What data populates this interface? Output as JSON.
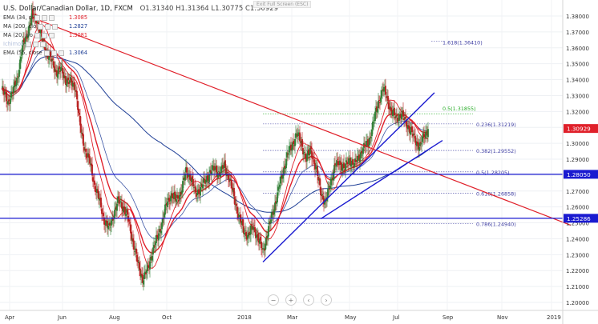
{
  "header": {
    "title": "U.S. Dollar/Canadian Dollar, 1D, FXCM",
    "open": "O1.31340",
    "high": "H1.31364",
    "low": "L1.30775",
    "close": "C1.30929",
    "exit_fullscreen": "Exit Full Screen (ESC)"
  },
  "legend": [
    {
      "label": "EMA (34, cl",
      "value": "1.3085",
      "color": "#e0202a",
      "icon": "eye-icon"
    },
    {
      "label": "MA (200, clo",
      "value": "1.2827",
      "color": "#1f3f96",
      "icon": "eye-icon"
    },
    {
      "label": "MA (20, clo",
      "value": "1.3081",
      "color": "#e0202a",
      "icon": "eye-icon"
    },
    {
      "label": "Ichimok",
      "value": "",
      "color": "#9bb0d8",
      "icon": "eye-icon"
    },
    {
      "label": "EMA (55, close",
      "value": "1.3064",
      "color": "#1f3f96",
      "icon": "eye-icon"
    }
  ],
  "nav_buttons": [
    {
      "label": "−",
      "icon": "zoom-out-icon"
    },
    {
      "label": "+",
      "icon": "zoom-in-icon"
    },
    {
      "label": "‹",
      "icon": "scroll-left-icon"
    },
    {
      "label": "›",
      "icon": "scroll-right-icon"
    }
  ],
  "price_labels": [
    {
      "text": "1.30929",
      "price": 1.30929,
      "bg": "#e0202a"
    },
    {
      "text": "1.28050",
      "price": 1.2805,
      "bg": "#1a1ad0"
    },
    {
      "text": "1.25286",
      "price": 1.25286,
      "bg": "#1a1ad0"
    }
  ],
  "colors": {
    "up_candle": "#2e7d32",
    "down_candle": "#b71c1c",
    "ema34": "#e0202a",
    "ma20": "#e0202a",
    "ma200": "#1f3f96",
    "ema55": "#3d57a6",
    "trendline_red": "#e0202a",
    "trendline_blue": "#1a1ad0",
    "hline": "#1a1ad0",
    "fib": "#3a3aa0",
    "fib_mid": "#22aa22"
  },
  "chart_data": {
    "type": "candlestick",
    "title": "U.S. Dollar/Canadian Dollar, 1D, FXCM",
    "timeframe": "1D",
    "ohlc_last": {
      "open": 1.3134,
      "high": 1.31364,
      "low": 1.30775,
      "close": 1.30929
    },
    "x_ticks": [
      "Apr",
      "Jun",
      "Aug",
      "Oct",
      "2018",
      "Mar",
      "May",
      "Jul",
      "Sep",
      "Nov",
      "2019"
    ],
    "y_ticks": [
      "1.38000",
      "1.37000",
      "1.36000",
      "1.35000",
      "1.34000",
      "1.33000",
      "1.32000",
      "1.31000",
      "1.30000",
      "1.29000",
      "1.28000",
      "1.27000",
      "1.26000",
      "1.25000",
      "1.24000",
      "1.23000",
      "1.22000",
      "1.21000",
      "1.20000"
    ],
    "ylim": [
      1.195,
      1.387
    ],
    "fibonacci": [
      {
        "label": "1.618(1.36410)",
        "price": 1.3641
      },
      {
        "label": "0.5(1.31855)",
        "price": 1.31855
      },
      {
        "label": "0.236(1.31219)",
        "price": 1.31219
      },
      {
        "label": "0.382(1.29552)",
        "price": 1.29552
      },
      {
        "label": "0.5(1.28205)",
        "price": 1.28205
      },
      {
        "label": "0.618(1.26858)",
        "price": 1.26858
      },
      {
        "label": "0.786(1.24940)",
        "price": 1.2494
      }
    ],
    "horizontal_lines": [
      1.2805,
      1.25286
    ],
    "price_path": [
      [
        0,
        1.334
      ],
      [
        8,
        1.326
      ],
      [
        14,
        1.332
      ],
      [
        20,
        1.342
      ],
      [
        26,
        1.36
      ],
      [
        32,
        1.369
      ],
      [
        38,
        1.38
      ],
      [
        44,
        1.378
      ],
      [
        50,
        1.366
      ],
      [
        56,
        1.358
      ],
      [
        62,
        1.352
      ],
      [
        68,
        1.345
      ],
      [
        74,
        1.346
      ],
      [
        80,
        1.34
      ],
      [
        86,
        1.338
      ],
      [
        92,
        1.336
      ],
      [
        98,
        1.31
      ],
      [
        104,
        1.296
      ],
      [
        110,
        1.288
      ],
      [
        116,
        1.274
      ],
      [
        122,
        1.264
      ],
      [
        128,
        1.252
      ],
      [
        134,
        1.246
      ],
      [
        140,
        1.256
      ],
      [
        146,
        1.264
      ],
      [
        152,
        1.26
      ],
      [
        158,
        1.252
      ],
      [
        164,
        1.238
      ],
      [
        170,
        1.224
      ],
      [
        176,
        1.215
      ],
      [
        182,
        1.22
      ],
      [
        188,
        1.232
      ],
      [
        194,
        1.24
      ],
      [
        200,
        1.25
      ],
      [
        206,
        1.262
      ],
      [
        212,
        1.268
      ],
      [
        218,
        1.264
      ],
      [
        224,
        1.27
      ],
      [
        230,
        1.282
      ],
      [
        236,
        1.279
      ],
      [
        242,
        1.268
      ],
      [
        248,
        1.272
      ],
      [
        254,
        1.276
      ],
      [
        260,
        1.282
      ],
      [
        266,
        1.284
      ],
      [
        272,
        1.281
      ],
      [
        278,
        1.286
      ],
      [
        284,
        1.278
      ],
      [
        290,
        1.266
      ],
      [
        296,
        1.254
      ],
      [
        302,
        1.245
      ],
      [
        308,
        1.242
      ],
      [
        314,
        1.248
      ],
      [
        320,
        1.24
      ],
      [
        326,
        1.232
      ],
      [
        332,
        1.244
      ],
      [
        338,
        1.256
      ],
      [
        344,
        1.268
      ],
      [
        350,
        1.28
      ],
      [
        356,
        1.292
      ],
      [
        362,
        1.298
      ],
      [
        368,
        1.306
      ],
      [
        374,
        1.3
      ],
      [
        380,
        1.29
      ],
      [
        386,
        1.296
      ],
      [
        392,
        1.284
      ],
      [
        398,
        1.27
      ],
      [
        404,
        1.262
      ],
      [
        410,
        1.275
      ],
      [
        416,
        1.286
      ],
      [
        422,
        1.288
      ],
      [
        428,
        1.284
      ],
      [
        434,
        1.29
      ],
      [
        440,
        1.286
      ],
      [
        446,
        1.292
      ],
      [
        452,
        1.297
      ],
      [
        458,
        1.301
      ],
      [
        464,
        1.313
      ],
      [
        470,
        1.326
      ],
      [
        476,
        1.334
      ],
      [
        480,
        1.33
      ],
      [
        486,
        1.32
      ],
      [
        492,
        1.316
      ],
      [
        498,
        1.318
      ],
      [
        504,
        1.314
      ],
      [
        510,
        1.308
      ],
      [
        516,
        1.302
      ],
      [
        522,
        1.298
      ],
      [
        528,
        1.306
      ],
      [
        532,
        1.309
      ]
    ],
    "series": [
      {
        "name": "EMA (34, close)",
        "last": 1.3085
      },
      {
        "name": "MA (200, close)",
        "last": 1.2827
      },
      {
        "name": "MA (20, close)",
        "last": 1.3081
      },
      {
        "name": "EMA (55, close)",
        "last": 1.3064
      }
    ]
  }
}
